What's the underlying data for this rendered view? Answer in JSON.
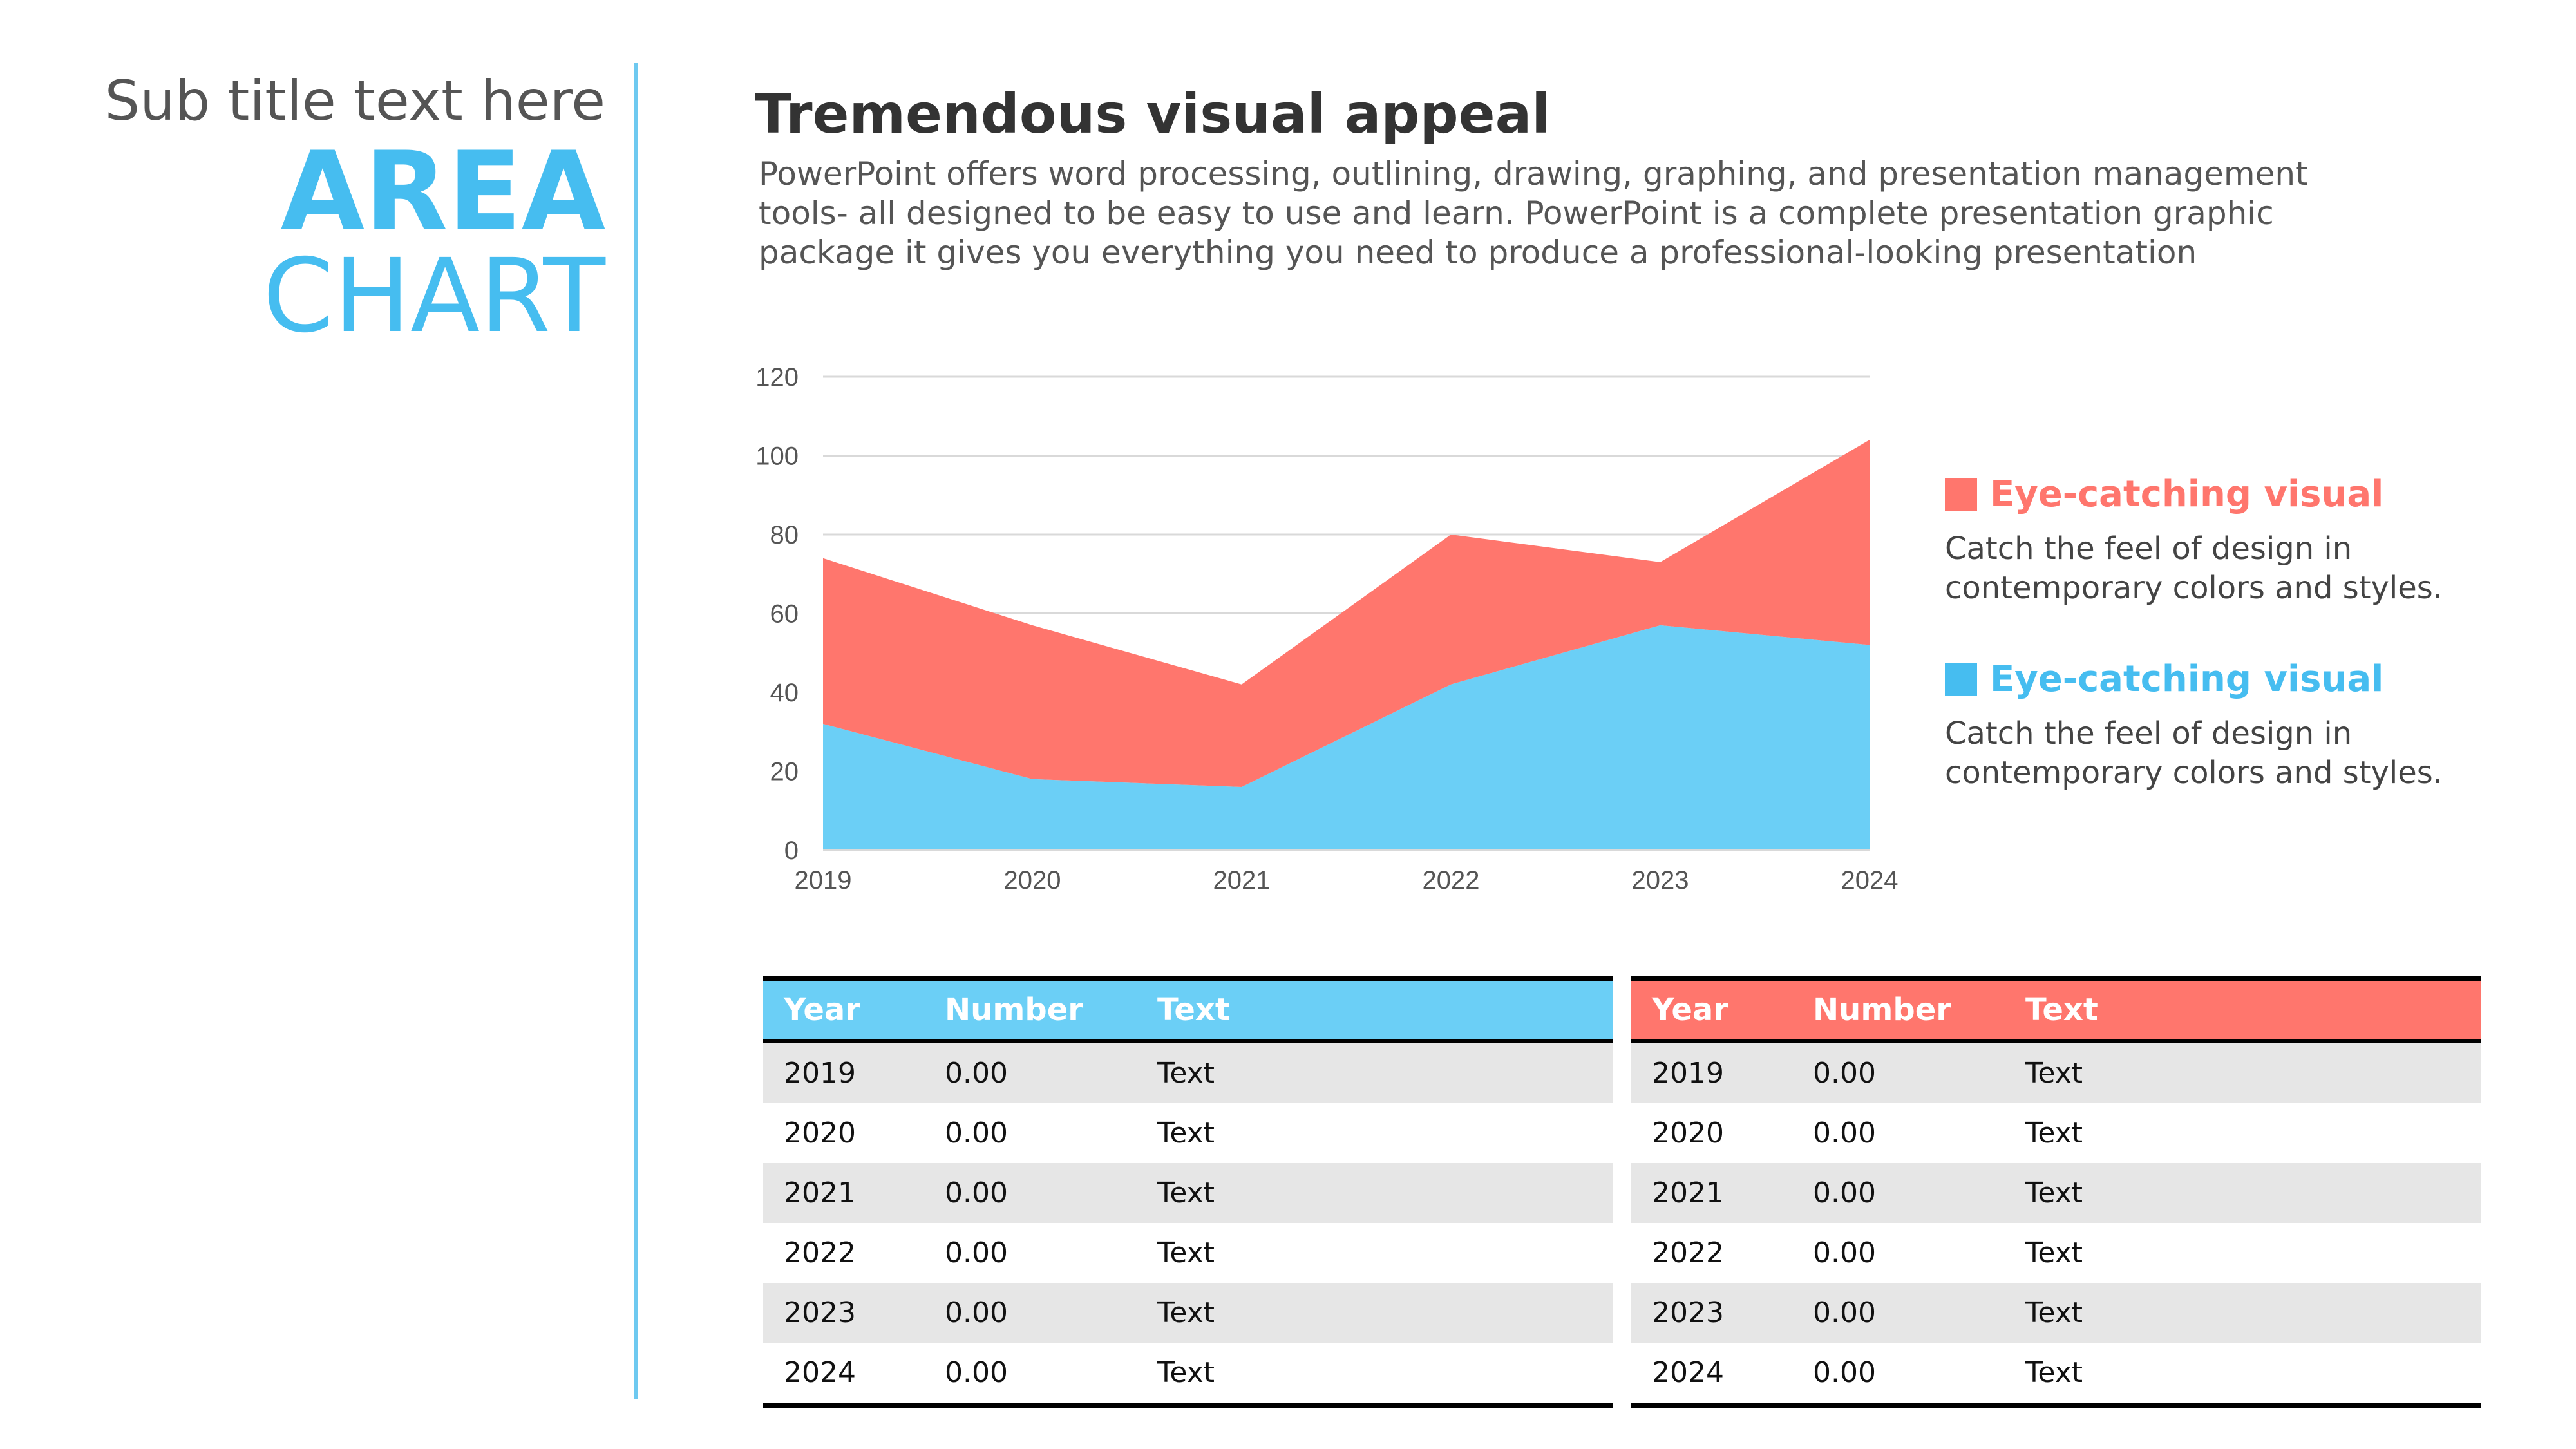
{
  "left": {
    "subtitle": "Sub title text here",
    "title_line1": "AREA",
    "title_line2": "CHART"
  },
  "heading": "Tremendous visual appeal",
  "description": "PowerPoint offers word processing, outlining, drawing, graphing, and presentation management tools- all designed to be easy to use and learn. PowerPoint is a complete presentation graphic package it gives you everything you need to produce a professional-looking presentation",
  "colors": {
    "red": "#ff766d",
    "blue": "#6bcff6",
    "accent": "#46bdf0",
    "grid": "#d9d9d9"
  },
  "chart_data": {
    "type": "area",
    "stacked": true,
    "x": [
      "2019",
      "2020",
      "2021",
      "2022",
      "2023",
      "2024"
    ],
    "y_ticks": [
      "0",
      "20",
      "40",
      "60",
      "80",
      "100",
      "120"
    ],
    "ylim": [
      0,
      120
    ],
    "grid": true,
    "series": [
      {
        "values": [
          32,
          18,
          16,
          42,
          57,
          52
        ],
        "color": "#6bcff6"
      },
      {
        "values": [
          42,
          39,
          26,
          38,
          16,
          52
        ],
        "color": "#ff766d"
      }
    ]
  },
  "legend": [
    {
      "title": "Eye-catching visual",
      "text": "Catch the feel of design in contemporary colors and styles.",
      "color": "#ff766d"
    },
    {
      "title": "Eye-catching visual",
      "text": "Catch the feel of design in contemporary colors and styles.",
      "color": "#46bdf0"
    }
  ],
  "tables": [
    {
      "color": "#6bcff6",
      "headers": [
        "Year",
        "Number",
        "Text"
      ],
      "rows": [
        [
          "2019",
          "0.00",
          "Text"
        ],
        [
          "2020",
          "0.00",
          "Text"
        ],
        [
          "2021",
          "0.00",
          "Text"
        ],
        [
          "2022",
          "0.00",
          "Text"
        ],
        [
          "2023",
          "0.00",
          "Text"
        ],
        [
          "2024",
          "0.00",
          "Text"
        ]
      ]
    },
    {
      "color": "#ff766d",
      "headers": [
        "Year",
        "Number",
        "Text"
      ],
      "rows": [
        [
          "2019",
          "0.00",
          "Text"
        ],
        [
          "2020",
          "0.00",
          "Text"
        ],
        [
          "2021",
          "0.00",
          "Text"
        ],
        [
          "2022",
          "0.00",
          "Text"
        ],
        [
          "2023",
          "0.00",
          "Text"
        ],
        [
          "2024",
          "0.00",
          "Text"
        ]
      ]
    }
  ]
}
